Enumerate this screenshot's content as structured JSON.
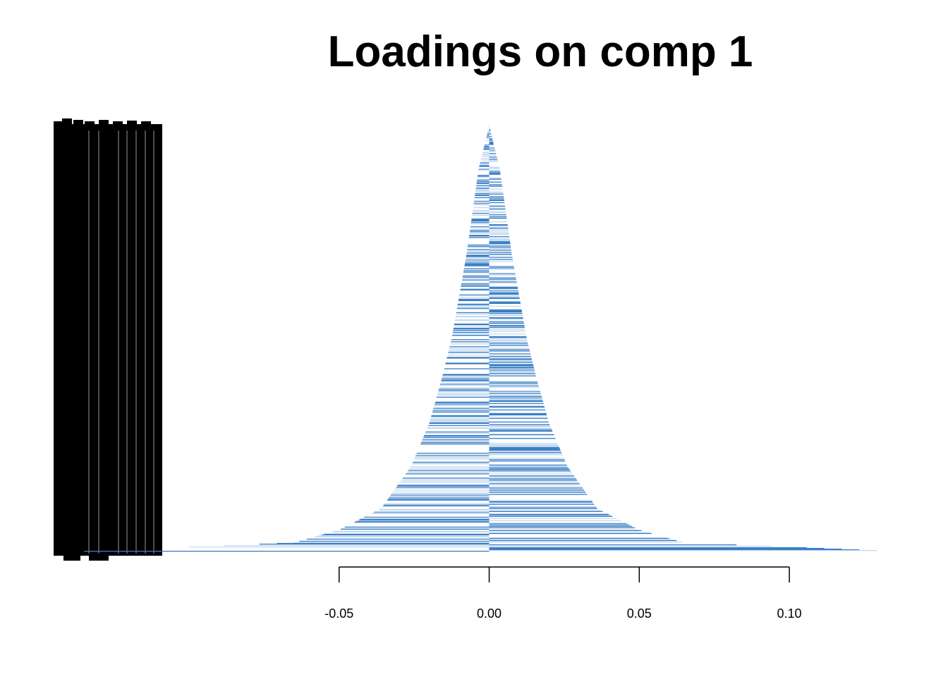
{
  "chart_data": {
    "type": "bar",
    "orientation": "horizontal",
    "title": "Loadings on comp 1",
    "xlabel": "",
    "ylabel": "",
    "xlim": [
      -0.1,
      0.135
    ],
    "x_ticks": [
      -0.05,
      0.0,
      0.05,
      0.1
    ],
    "x_tick_labels": [
      "-0.05",
      "0.00",
      "0.05",
      "0.10"
    ],
    "n_variables": 600,
    "sort": "ascending by absolute loading, largest at bottom",
    "loading_profile": {
      "description": "absolute loading by rank from top (0) to bottom (1)",
      "rank_fraction": [
        0.0,
        0.1,
        0.2,
        0.3,
        0.4,
        0.5,
        0.6,
        0.7,
        0.8,
        0.9,
        0.95,
        0.98,
        1.0
      ],
      "abs_loading": [
        0.0,
        0.0035,
        0.0055,
        0.0075,
        0.01,
        0.0125,
        0.016,
        0.02,
        0.026,
        0.036,
        0.05,
        0.065,
        0.135
      ]
    },
    "colors": {
      "bar_dark": "#3a7ec6",
      "bar_light": "#c6dbef",
      "axis": "#000000",
      "labels": "#000000"
    },
    "grid": false,
    "legend": "none"
  }
}
